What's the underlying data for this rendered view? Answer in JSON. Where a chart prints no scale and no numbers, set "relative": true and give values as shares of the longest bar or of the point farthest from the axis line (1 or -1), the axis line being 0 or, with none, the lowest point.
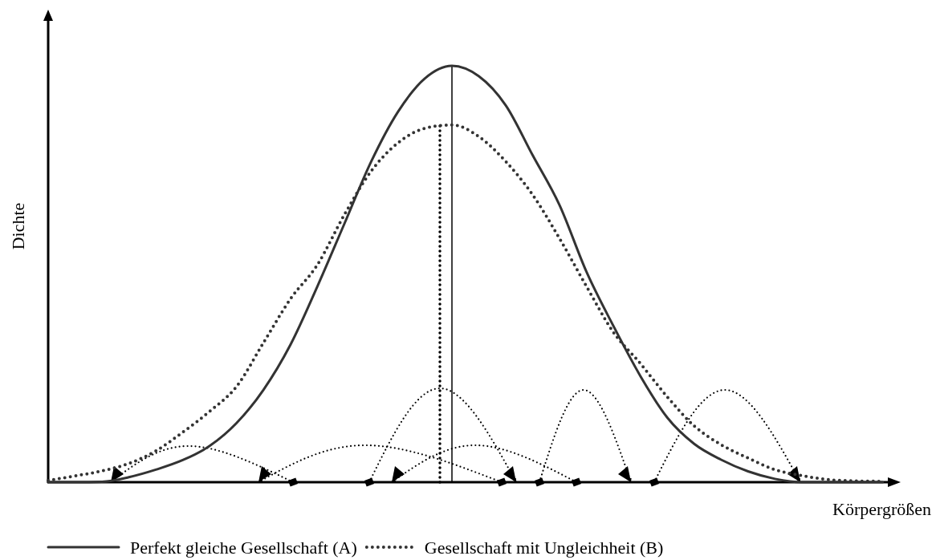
{
  "chart_data": {
    "type": "line",
    "relative": true,
    "xlabel": "Körpergrößen",
    "ylabel": "Dichte",
    "legend": "bottom",
    "tick_labels": false,
    "categories": [
      null,
      null,
      null,
      null,
      null,
      null,
      null,
      null,
      null,
      null,
      null,
      null,
      null,
      null,
      null,
      null,
      null,
      null,
      null,
      null,
      null,
      null,
      null,
      null,
      null,
      null,
      null,
      null,
      null,
      null,
      null,
      null
    ],
    "series": [
      {
        "name": "Perfekt gleiche Gesellschaft (A)",
        "color": "#333333",
        "line_style": "solid",
        "values": [
          0,
          0,
          0.001,
          0.012,
          0.03,
          0.053,
          0.087,
          0.142,
          0.222,
          0.33,
          0.47,
          0.62,
          0.77,
          0.89,
          0.97,
          1,
          0.975,
          0.905,
          0.785,
          0.665,
          0.505,
          0.375,
          0.255,
          0.155,
          0.092,
          0.054,
          0.026,
          0.008,
          0,
          0,
          0,
          0
        ]
      },
      {
        "name": "Gesellschaft mit Ungleichheit (B)",
        "color": "#333333",
        "line_style": "dotted",
        "values": [
          0.004,
          0.015,
          0.027,
          0.045,
          0.075,
          0.12,
          0.17,
          0.23,
          0.335,
          0.44,
          0.522,
          0.642,
          0.747,
          0.815,
          0.85,
          0.858,
          0.83,
          0.77,
          0.69,
          0.585,
          0.47,
          0.36,
          0.285,
          0.205,
          0.135,
          0.09,
          0.058,
          0.03,
          0.016,
          0.006,
          0.003,
          0.002
        ]
      }
    ]
  }
}
